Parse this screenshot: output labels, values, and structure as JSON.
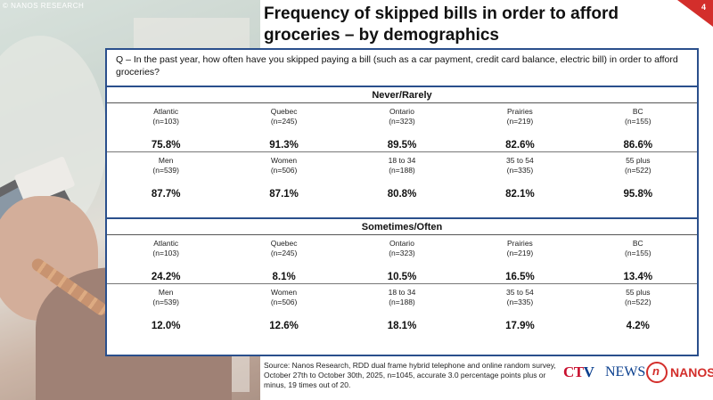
{
  "watermark": "© NANOS RESEARCH",
  "page_number": "4",
  "title": "Frequency of skipped bills in order to afford groceries – by demographics",
  "question": "Q – In the past year, how often have you skipped paying a bill (such as a car payment, credit card balance, electric bill) in order to afford groceries?",
  "sections": [
    {
      "heading": "Never/Rarely",
      "rows": [
        [
          {
            "label": "Atlantic",
            "n": "(n=103)",
            "value": "75.8%"
          },
          {
            "label": "Quebec",
            "n": "(n=245)",
            "value": "91.3%"
          },
          {
            "label": "Ontario",
            "n": "(n=323)",
            "value": "89.5%"
          },
          {
            "label": "Prairies",
            "n": "(n=219)",
            "value": "82.6%"
          },
          {
            "label": "BC",
            "n": "(n=155)",
            "value": "86.6%"
          }
        ],
        [
          {
            "label": "Men",
            "n": "(n=539)",
            "value": "87.7%"
          },
          {
            "label": "Women",
            "n": "(n=506)",
            "value": "87.1%"
          },
          {
            "label": "18 to 34",
            "n": "(n=188)",
            "value": "80.8%"
          },
          {
            "label": "35 to 54",
            "n": "(n=335)",
            "value": "82.1%"
          },
          {
            "label": "55 plus",
            "n": "(n=522)",
            "value": "95.8%"
          }
        ]
      ]
    },
    {
      "heading": "Sometimes/Often",
      "rows": [
        [
          {
            "label": "Atlantic",
            "n": "(n=103)",
            "value": "24.2%"
          },
          {
            "label": "Quebec",
            "n": "(n=245)",
            "value": "8.1%"
          },
          {
            "label": "Ontario",
            "n": "(n=323)",
            "value": "10.5%"
          },
          {
            "label": "Prairies",
            "n": "(n=219)",
            "value": "16.5%"
          },
          {
            "label": "BC",
            "n": "(n=155)",
            "value": "13.4%"
          }
        ],
        [
          {
            "label": "Men",
            "n": "(n=539)",
            "value": "12.0%"
          },
          {
            "label": "Women",
            "n": "(n=506)",
            "value": "12.6%"
          },
          {
            "label": "18 to 34",
            "n": "(n=188)",
            "value": "18.1%"
          },
          {
            "label": "35 to 54",
            "n": "(n=335)",
            "value": "17.9%"
          },
          {
            "label": "55 plus",
            "n": "(n=522)",
            "value": "4.2%"
          }
        ]
      ]
    }
  ],
  "source": "Source: Nanos Research, RDD dual frame hybrid telephone and online random survey, October 27th to October 30th, 2025, n=1045, accurate 3.0 percentage points plus or minus, 19 times out of 20.",
  "logos": {
    "ctv_c": "C",
    "ctv_t": "T",
    "ctv_v": "V",
    "news": "NEWS",
    "nanos_mark": "n",
    "nanos": "NANOS"
  },
  "colors": {
    "frame": "#2a4f8c",
    "accent": "#d32e2b",
    "ctv_red": "#c8102e",
    "ctv_blue": "#0a3f8e"
  }
}
